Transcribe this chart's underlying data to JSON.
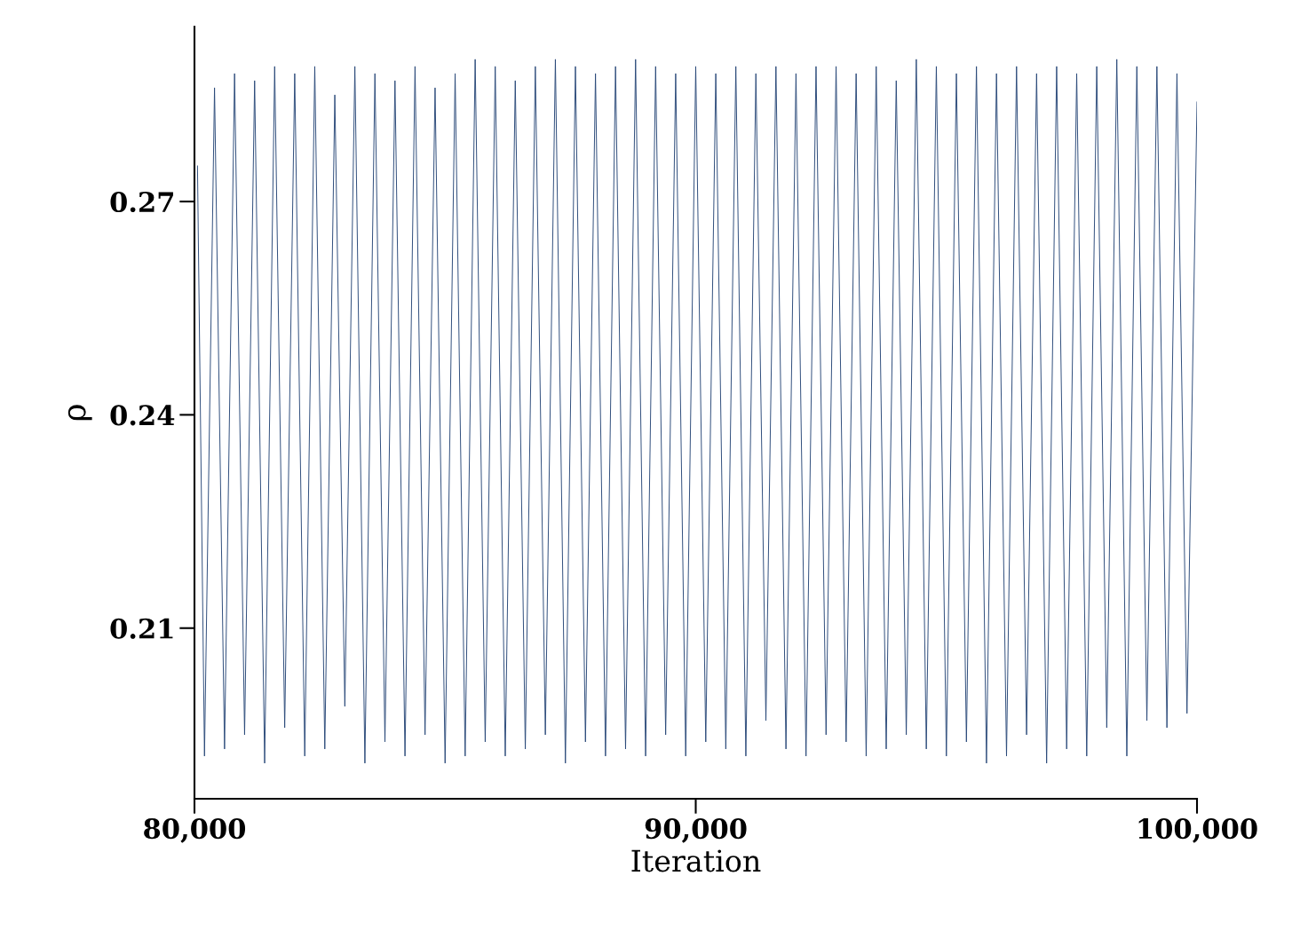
{
  "chart_data": {
    "type": "line",
    "xlabel": "Iteration",
    "ylabel": "ρ",
    "x": [
      80060,
      80200,
      80400,
      80600,
      80800,
      81000,
      81200,
      81400,
      81600,
      81800,
      82000,
      82200,
      82400,
      82600,
      82800,
      83000,
      83200,
      83400,
      83600,
      83800,
      84000,
      84200,
      84400,
      84600,
      84800,
      85000,
      85200,
      85400,
      85600,
      85800,
      86000,
      86200,
      86400,
      86600,
      86800,
      87000,
      87200,
      87400,
      87600,
      87800,
      88000,
      88200,
      88400,
      88600,
      88800,
      89000,
      89200,
      89400,
      89600,
      89800,
      90000,
      90200,
      90400,
      90600,
      90800,
      91000,
      91200,
      91400,
      91600,
      91800,
      92000,
      92200,
      92400,
      92600,
      92800,
      93000,
      93200,
      93400,
      93600,
      93800,
      94000,
      94200,
      94400,
      94600,
      94800,
      95000,
      95200,
      95400,
      95600,
      95800,
      96000,
      96200,
      96400,
      96600,
      96800,
      97000,
      97200,
      97400,
      97600,
      97800,
      98000,
      98200,
      98400,
      98600,
      98800,
      99000,
      99200,
      99400,
      99600,
      99800,
      100000
    ],
    "series": [
      {
        "color": "#2b4a7a",
        "values": [
          0.275,
          0.192,
          0.286,
          0.193,
          0.288,
          0.195,
          0.287,
          0.191,
          0.289,
          0.196,
          0.288,
          0.192,
          0.289,
          0.193,
          0.285,
          0.199,
          0.289,
          0.191,
          0.288,
          0.194,
          0.287,
          0.192,
          0.289,
          0.195,
          0.286,
          0.191,
          0.288,
          0.192,
          0.29,
          0.194,
          0.289,
          0.192,
          0.287,
          0.193,
          0.289,
          0.195,
          0.29,
          0.191,
          0.289,
          0.194,
          0.288,
          0.192,
          0.289,
          0.193,
          0.29,
          0.192,
          0.289,
          0.195,
          0.288,
          0.192,
          0.289,
          0.194,
          0.288,
          0.193,
          0.289,
          0.192,
          0.288,
          0.197,
          0.289,
          0.193,
          0.288,
          0.192,
          0.289,
          0.195,
          0.289,
          0.194,
          0.288,
          0.192,
          0.289,
          0.193,
          0.287,
          0.195,
          0.29,
          0.193,
          0.289,
          0.192,
          0.288,
          0.194,
          0.289,
          0.191,
          0.288,
          0.192,
          0.289,
          0.195,
          0.288,
          0.191,
          0.289,
          0.193,
          0.288,
          0.192,
          0.289,
          0.196,
          0.29,
          0.192,
          0.289,
          0.197,
          0.289,
          0.196,
          0.288,
          0.198,
          0.284
        ]
      }
    ],
    "xlim": [
      80000,
      100000
    ],
    "xticks": [
      {
        "value": 80000,
        "label": "80,000"
      },
      {
        "value": 90000,
        "label": "90,000"
      },
      {
        "value": 100000,
        "label": "100,000"
      }
    ],
    "ylim": [
      0.186,
      0.2946
    ],
    "yticks": [
      0.21,
      0.24,
      0.27
    ],
    "grid": false,
    "legend": false
  }
}
